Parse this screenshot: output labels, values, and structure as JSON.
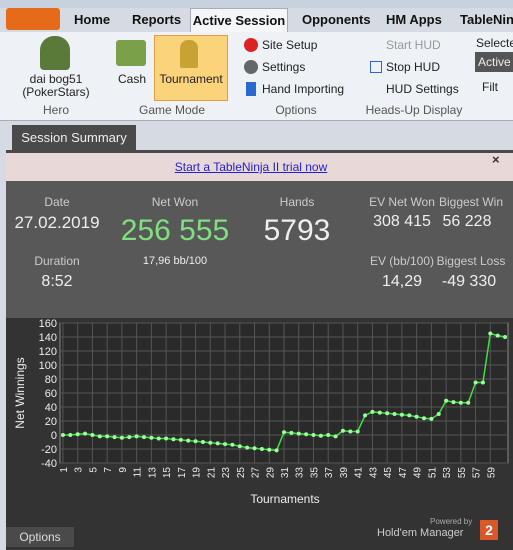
{
  "tabs": [
    "Home",
    "Reports",
    "Active Session",
    "Opponents",
    "HM Apps",
    "TableNinja"
  ],
  "ribbon": {
    "hero": {
      "name": "dai bog51",
      "site": "(PokerStars)",
      "label": "Hero"
    },
    "game_mode": {
      "buttons": [
        "Cash",
        "Tournament"
      ],
      "label": "Game Mode"
    },
    "options": {
      "items": [
        "Site Setup",
        "Settings",
        "Hand Importing"
      ],
      "label": "Options"
    },
    "hud": {
      "items": [
        "Start HUD",
        "Stop HUD",
        "HUD Settings"
      ],
      "label": "Heads-Up Display"
    },
    "right": {
      "selected": "Selecte",
      "active": "Active",
      "filter": "Filt"
    }
  },
  "session_tab": "Session Summary",
  "banner": "Start a TableNinja II trial now",
  "stats": {
    "date": {
      "label": "Date",
      "value": "27.02.2019"
    },
    "net_won": {
      "label": "Net Won",
      "value": "256 555",
      "sub": "17,96 bb/100"
    },
    "hands": {
      "label": "Hands",
      "value": "5793"
    },
    "ev_net_won": {
      "label": "EV Net Won",
      "value": "308 415"
    },
    "biggest_win": {
      "label": "Biggest Win",
      "value": "56 228"
    },
    "duration": {
      "label": "Duration",
      "value": "8:52"
    },
    "ev_bb": {
      "label": "EV (bb/100)",
      "value": "14,29"
    },
    "biggest_loss": {
      "label": "Biggest Loss",
      "value": "-49 330"
    }
  },
  "chart_data": {
    "type": "line",
    "y_label": "Net Winnings",
    "x_label": "Tournaments",
    "color": "#44dd44",
    "grid": true,
    "x": [
      1,
      2,
      3,
      4,
      5,
      6,
      7,
      8,
      9,
      10,
      11,
      12,
      13,
      14,
      15,
      16,
      17,
      18,
      19,
      20,
      21,
      22,
      23,
      24,
      25,
      26,
      27,
      28,
      29,
      30,
      31,
      32,
      33,
      34,
      35,
      36,
      37,
      38,
      39,
      40,
      41,
      42,
      43,
      44,
      45,
      46,
      47,
      48,
      49,
      50,
      51,
      52,
      53,
      54,
      55,
      56,
      57,
      58,
      59,
      60,
      61
    ],
    "values": [
      0,
      0,
      1,
      2,
      0,
      -2,
      -2,
      -3,
      -4,
      -3,
      -2,
      -3,
      -4,
      -5,
      -5,
      -6,
      -7,
      -8,
      -9,
      -10,
      -11,
      -12,
      -13,
      -14,
      -16,
      -18,
      -19,
      -20,
      -21,
      -22,
      4,
      3,
      2,
      1,
      0,
      -1,
      0,
      -2,
      6,
      5,
      5,
      28,
      33,
      32,
      31,
      30,
      29,
      28,
      26,
      24,
      23,
      30,
      49,
      47,
      46,
      46,
      75,
      75,
      145,
      142,
      140
    ],
    "xlim": [
      0.6,
      61.4
    ],
    "xticks": [
      1,
      3,
      5,
      7,
      9,
      11,
      13,
      15,
      17,
      19,
      21,
      23,
      25,
      27,
      29,
      31,
      33,
      35,
      37,
      39,
      41,
      43,
      45,
      47,
      49,
      51,
      53,
      55,
      57,
      59
    ],
    "ylim": [
      -40,
      160
    ],
    "yticks": [
      -40,
      -20,
      0,
      20,
      40,
      60,
      80,
      100,
      120,
      140,
      160
    ]
  },
  "footer": {
    "options": "Options",
    "powered": "Powered by",
    "brand": "Hold'em Manager",
    "version": "2"
  }
}
